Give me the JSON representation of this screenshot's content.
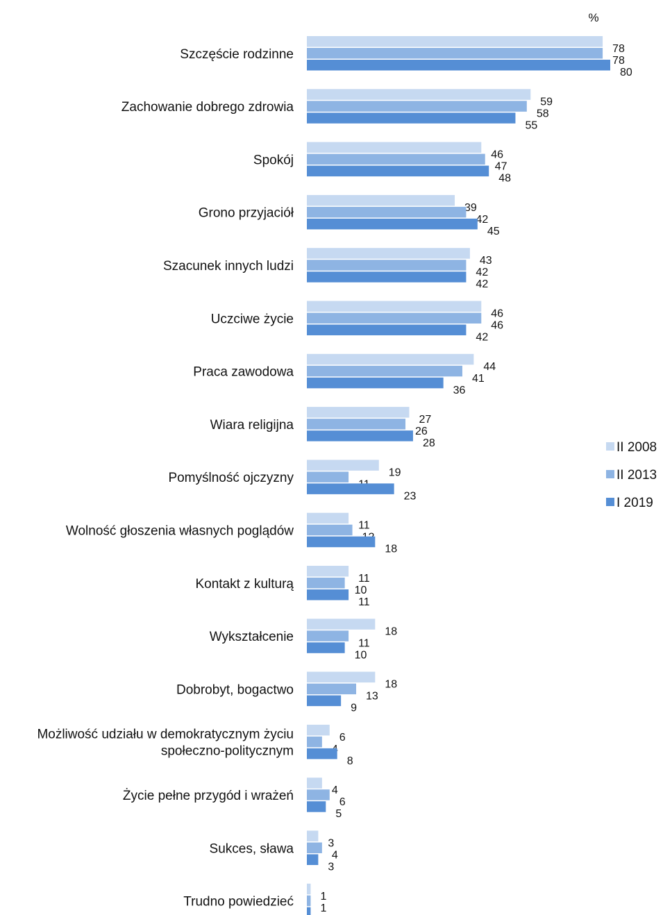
{
  "chart_data": {
    "type": "bar",
    "orientation": "horizontal",
    "unit_label": "%",
    "categories": [
      [
        "Szczęście rodzinne"
      ],
      [
        "Zachowanie dobrego zdrowia"
      ],
      [
        "Spokój"
      ],
      [
        "Grono przyjaciół"
      ],
      [
        "Szacunek innych ludzi"
      ],
      [
        "Uczciwe życie"
      ],
      [
        "Praca zawodowa"
      ],
      [
        "Wiara religijna"
      ],
      [
        "Pomyślność ojczyzny"
      ],
      [
        "Wolność głoszenia własnych poglądów"
      ],
      [
        "Kontakt z kulturą"
      ],
      [
        "Wykształcenie"
      ],
      [
        "Dobrobyt, bogactwo"
      ],
      [
        "Możliwość udziału w demokratycznym życiu",
        "społeczno-politycznym"
      ],
      [
        "Życie pełne przygód i wrażeń"
      ],
      [
        "Sukces, sława"
      ],
      [
        "Trudno powiedzieć"
      ]
    ],
    "series": [
      {
        "name": "II 2008",
        "color": "#c6d9f1",
        "values": [
          78,
          59,
          46,
          39,
          43,
          46,
          44,
          27,
          19,
          11,
          11,
          18,
          18,
          6,
          4,
          3,
          1
        ]
      },
      {
        "name": "II 2013",
        "color": "#8eb4e3",
        "values": [
          78,
          58,
          47,
          42,
          42,
          46,
          41,
          26,
          11,
          12,
          10,
          11,
          13,
          4,
          6,
          4,
          1
        ]
      },
      {
        "name": "I 2019",
        "color": "#558ed5",
        "values": [
          80,
          55,
          48,
          45,
          42,
          42,
          36,
          28,
          23,
          18,
          11,
          10,
          9,
          8,
          5,
          3,
          1
        ]
      }
    ],
    "xlim": [
      0,
      80
    ],
    "grid": false,
    "legend_position": "right"
  }
}
